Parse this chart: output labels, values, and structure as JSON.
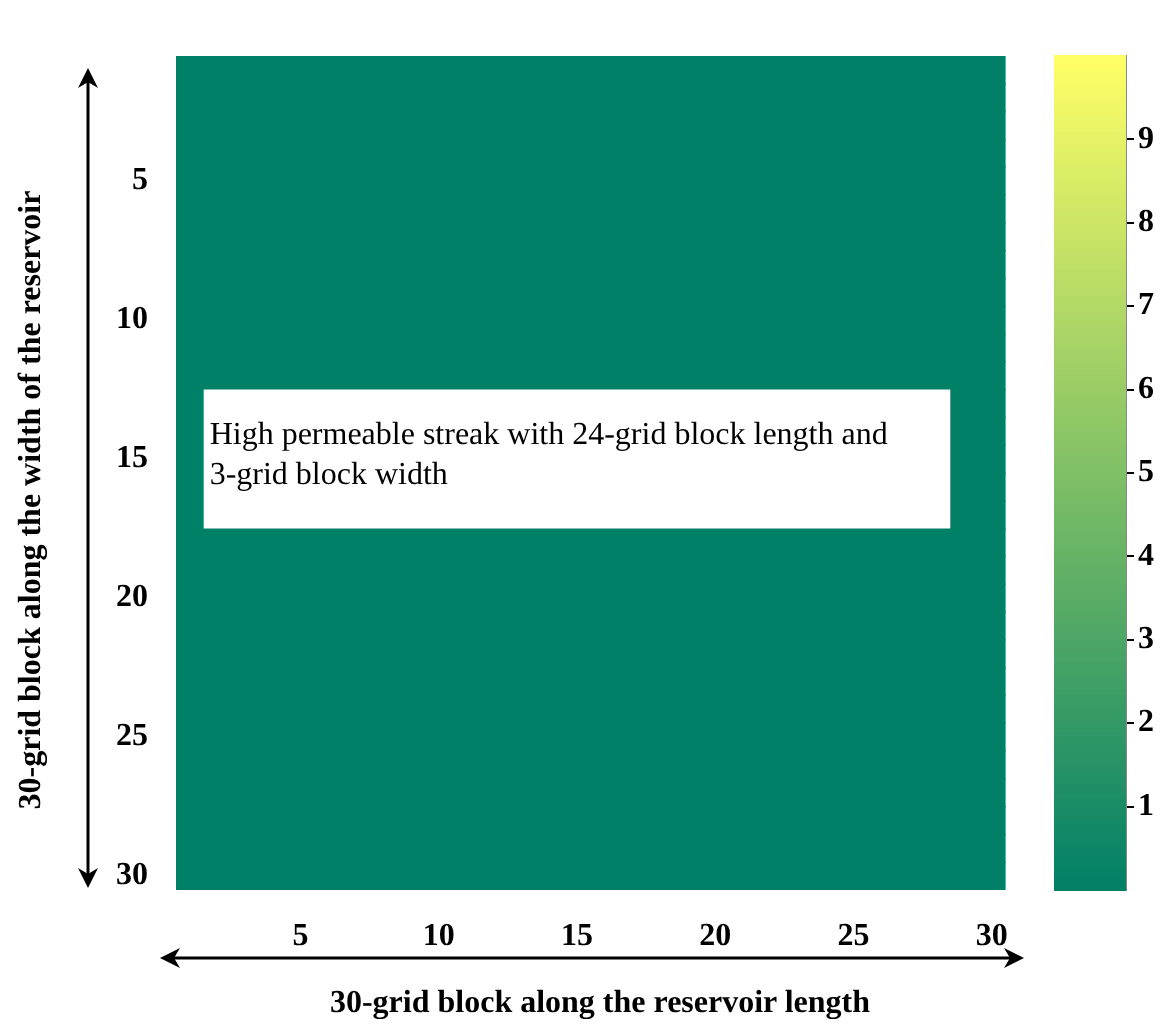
{
  "chart_data": {
    "type": "heatmap",
    "xlabel": "30-grid block along the reservoir length",
    "ylabel": "30-grid block along the width of the reservoir",
    "categories": [
      null,
      null,
      null,
      null,
      "5",
      null,
      null,
      null,
      null,
      "10",
      null,
      null,
      null,
      null,
      "15",
      null,
      null,
      null,
      null,
      "20",
      null,
      null,
      null,
      null,
      "25",
      null,
      null,
      null,
      null,
      "30"
    ],
    "y_categories": [
      null,
      null,
      null,
      null,
      "5",
      null,
      null,
      null,
      null,
      "10",
      null,
      null,
      null,
      null,
      "15",
      null,
      null,
      null,
      null,
      "20",
      null,
      null,
      null,
      null,
      "25",
      null,
      null,
      null,
      null,
      "30"
    ],
    "cells": [
      [
        0,
        0,
        0,
        0,
        0,
        0,
        0,
        0,
        0,
        0,
        0,
        0,
        0,
        0,
        0,
        0,
        0,
        0,
        0,
        0,
        0,
        0,
        0,
        0,
        0,
        0,
        0,
        0,
        0,
        0
      ],
      [
        0,
        0,
        0,
        0,
        0,
        0,
        0,
        0,
        0,
        0,
        0,
        0,
        0,
        0,
        0,
        0,
        0,
        0,
        0,
        0,
        0,
        0,
        0,
        0,
        0,
        0,
        0,
        0,
        0,
        0
      ],
      [
        0,
        0,
        0,
        0,
        0,
        0,
        0,
        0,
        0,
        0,
        0,
        0,
        0,
        0,
        0,
        0,
        0,
        0,
        0,
        0,
        0,
        0,
        0,
        0,
        0,
        0,
        0,
        0,
        0,
        0
      ],
      [
        0,
        0,
        0,
        0,
        0,
        0,
        0,
        0,
        0,
        0,
        0,
        0,
        0,
        0,
        0,
        0,
        0,
        0,
        0,
        0,
        0,
        0,
        0,
        0,
        0,
        0,
        0,
        0,
        0,
        0
      ],
      [
        0,
        0,
        0,
        0,
        0,
        0,
        0,
        0,
        0,
        0,
        0,
        0,
        0,
        0,
        0,
        0,
        0,
        0,
        0,
        0,
        0,
        0,
        0,
        0,
        0,
        0,
        0,
        0,
        0,
        0
      ],
      [
        0,
        0,
        0,
        0,
        0,
        0,
        0,
        0,
        0,
        0,
        0,
        0,
        0,
        0,
        0,
        0,
        0,
        0,
        0,
        0,
        0,
        0,
        0,
        0,
        0,
        0,
        0,
        0,
        0,
        0
      ],
      [
        0,
        0,
        0,
        0,
        0,
        0,
        0,
        0,
        0,
        0,
        0,
        0,
        0,
        0,
        0,
        0,
        0,
        0,
        0,
        0,
        0,
        0,
        0,
        0,
        0,
        0,
        0,
        0,
        0,
        0
      ],
      [
        0,
        0,
        0,
        0,
        0,
        0,
        0,
        0,
        0,
        0,
        0,
        0,
        0,
        0,
        0,
        0,
        0,
        0,
        0,
        0,
        0,
        0,
        0,
        0,
        0,
        0,
        0,
        0,
        0,
        0
      ],
      [
        0,
        0,
        0,
        0,
        0,
        0,
        0,
        0,
        0,
        0,
        0,
        0,
        0,
        0,
        0,
        0,
        0,
        0,
        0,
        0,
        0,
        0,
        0,
        0,
        0,
        0,
        0,
        0,
        0,
        0
      ],
      [
        0,
        0,
        0,
        0,
        0,
        0,
        0,
        0,
        0,
        0,
        0,
        0,
        0,
        0,
        0,
        0,
        0,
        0,
        0,
        0,
        0,
        0,
        0,
        0,
        0,
        0,
        0,
        0,
        0,
        0
      ],
      [
        0,
        0,
        0,
        0,
        0,
        0,
        0,
        0,
        0,
        0,
        0,
        0,
        0,
        0,
        0,
        0,
        0,
        0,
        0,
        0,
        0,
        0,
        0,
        0,
        0,
        0,
        0,
        0,
        0,
        0
      ],
      [
        0,
        0,
        0,
        0,
        0,
        0,
        0,
        0,
        0,
        0,
        0,
        0,
        0,
        0,
        0,
        0,
        0,
        0,
        0,
        0,
        0,
        0,
        0,
        0,
        0,
        0,
        0,
        0,
        0,
        0
      ],
      [
        0,
        null,
        null,
        null,
        null,
        null,
        null,
        null,
        null,
        null,
        null,
        null,
        null,
        null,
        null,
        null,
        null,
        null,
        null,
        null,
        null,
        null,
        null,
        null,
        null,
        null,
        null,
        null,
        0,
        0
      ],
      [
        0,
        null,
        null,
        null,
        null,
        null,
        null,
        null,
        null,
        null,
        null,
        null,
        null,
        null,
        null,
        null,
        null,
        null,
        null,
        null,
        null,
        null,
        null,
        null,
        null,
        null,
        null,
        null,
        0,
        0
      ],
      [
        0,
        null,
        null,
        null,
        null,
        null,
        null,
        null,
        null,
        null,
        null,
        null,
        null,
        null,
        null,
        null,
        null,
        null,
        null,
        null,
        null,
        null,
        null,
        null,
        null,
        null,
        null,
        null,
        0,
        0
      ],
      [
        0,
        null,
        null,
        null,
        null,
        null,
        null,
        null,
        null,
        null,
        null,
        null,
        null,
        null,
        null,
        null,
        null,
        null,
        null,
        null,
        null,
        null,
        null,
        null,
        null,
        null,
        null,
        null,
        0,
        0
      ],
      [
        0,
        null,
        null,
        null,
        null,
        null,
        null,
        null,
        null,
        null,
        null,
        null,
        null,
        null,
        null,
        null,
        null,
        null,
        null,
        null,
        null,
        null,
        null,
        null,
        null,
        null,
        null,
        null,
        0,
        0
      ],
      [
        0,
        0,
        0,
        0,
        0,
        0,
        0,
        0,
        0,
        0,
        0,
        0,
        0,
        0,
        0,
        0,
        0,
        0,
        0,
        0,
        0,
        0,
        0,
        0,
        0,
        0,
        0,
        0,
        0,
        0
      ],
      [
        0,
        0,
        0,
        0,
        0,
        0,
        0,
        0,
        0,
        0,
        0,
        0,
        0,
        0,
        0,
        0,
        0,
        0,
        0,
        0,
        0,
        0,
        0,
        0,
        0,
        0,
        0,
        0,
        0,
        0
      ],
      [
        0,
        0,
        0,
        0,
        0,
        0,
        0,
        0,
        0,
        0,
        0,
        0,
        0,
        0,
        0,
        0,
        0,
        0,
        0,
        0,
        0,
        0,
        0,
        0,
        0,
        0,
        0,
        0,
        0,
        0
      ],
      [
        0,
        0,
        0,
        0,
        0,
        0,
        0,
        0,
        0,
        0,
        0,
        0,
        0,
        0,
        0,
        0,
        0,
        0,
        0,
        0,
        0,
        0,
        0,
        0,
        0,
        0,
        0,
        0,
        0,
        0
      ],
      [
        0,
        0,
        0,
        0,
        0,
        0,
        0,
        0,
        0,
        0,
        0,
        0,
        0,
        0,
        0,
        0,
        0,
        0,
        0,
        0,
        0,
        0,
        0,
        0,
        0,
        0,
        0,
        0,
        0,
        0
      ],
      [
        0,
        0,
        0,
        0,
        0,
        0,
        0,
        0,
        0,
        0,
        0,
        0,
        0,
        0,
        0,
        0,
        0,
        0,
        0,
        0,
        0,
        0,
        0,
        0,
        0,
        0,
        0,
        0,
        0,
        0
      ],
      [
        0,
        0,
        0,
        0,
        0,
        0,
        0,
        0,
        0,
        0,
        0,
        0,
        0,
        0,
        0,
        0,
        0,
        0,
        0,
        0,
        0,
        0,
        0,
        0,
        0,
        0,
        0,
        0,
        0,
        0
      ],
      [
        0,
        0,
        0,
        0,
        0,
        0,
        0,
        0,
        0,
        0,
        0,
        0,
        0,
        0,
        0,
        0,
        0,
        0,
        0,
        0,
        0,
        0,
        0,
        0,
        0,
        0,
        0,
        0,
        0,
        0
      ],
      [
        0,
        0,
        0,
        0,
        0,
        0,
        0,
        0,
        0,
        0,
        0,
        0,
        0,
        0,
        0,
        0,
        0,
        0,
        0,
        0,
        0,
        0,
        0,
        0,
        0,
        0,
        0,
        0,
        0,
        0
      ],
      [
        0,
        0,
        0,
        0,
        0,
        0,
        0,
        0,
        0,
        0,
        0,
        0,
        0,
        0,
        0,
        0,
        0,
        0,
        0,
        0,
        0,
        0,
        0,
        0,
        0,
        0,
        0,
        0,
        0,
        0
      ],
      [
        0,
        0,
        0,
        0,
        0,
        0,
        0,
        0,
        0,
        0,
        0,
        0,
        0,
        0,
        0,
        0,
        0,
        0,
        0,
        0,
        0,
        0,
        0,
        0,
        0,
        0,
        0,
        0,
        0,
        0
      ],
      [
        0,
        0,
        0,
        0,
        0,
        0,
        0,
        0,
        0,
        0,
        0,
        0,
        0,
        0,
        0,
        0,
        0,
        0,
        0,
        0,
        0,
        0,
        0,
        0,
        0,
        0,
        0,
        0,
        0,
        0
      ],
      [
        0,
        0,
        0,
        0,
        0,
        0,
        0,
        0,
        0,
        0,
        0,
        0,
        0,
        0,
        0,
        0,
        0,
        0,
        0,
        0,
        0,
        0,
        0,
        0,
        0,
        0,
        0,
        0,
        0,
        0
      ]
    ],
    "clim": [
      0,
      10
    ],
    "cticks": [
      1,
      2,
      3,
      4,
      5,
      6,
      7,
      8,
      9
    ],
    "annotations": [
      "High permeable streak with 24-grid block length and 3-grid block width"
    ],
    "legend": false
  }
}
